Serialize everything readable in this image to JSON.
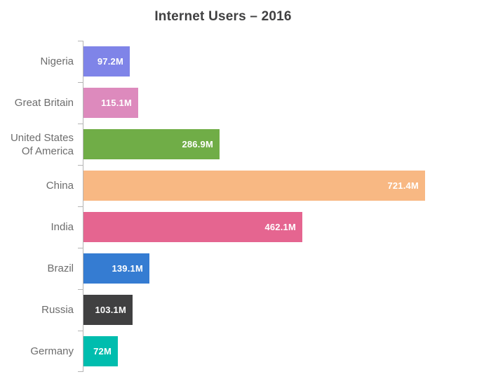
{
  "title": "Internet Users – 2016",
  "chart_data": {
    "type": "bar",
    "orientation": "horizontal",
    "title": "Internet Users – 2016",
    "categories": [
      "Nigeria",
      "Great Britain",
      "United States\nOf America",
      "China",
      "India",
      "Brazil",
      "Russia",
      "Germany"
    ],
    "values": [
      97.2,
      115.1,
      286.9,
      721.4,
      462.1,
      139.1,
      103.1,
      72
    ],
    "value_labels": [
      "97.2M",
      "115.1M",
      "286.9M",
      "721.4M",
      "462.1M",
      "139.1M",
      "103.1M",
      "72M"
    ],
    "bar_colors": [
      "#7f84e8",
      "#dd8abd",
      "#70ad47",
      "#f8b883",
      "#e56590",
      "#357cd2",
      "#404041",
      "#00bdae"
    ],
    "unit": "M",
    "xlim": [
      0,
      750
    ],
    "grid": false,
    "legend": false,
    "data_label_position": "inside-end",
    "colors": {
      "title": "#404041",
      "category_label": "#6d6d6d",
      "axis": "#b5b5b5",
      "value_label": "#ffffff",
      "background": "#ffffff"
    }
  }
}
